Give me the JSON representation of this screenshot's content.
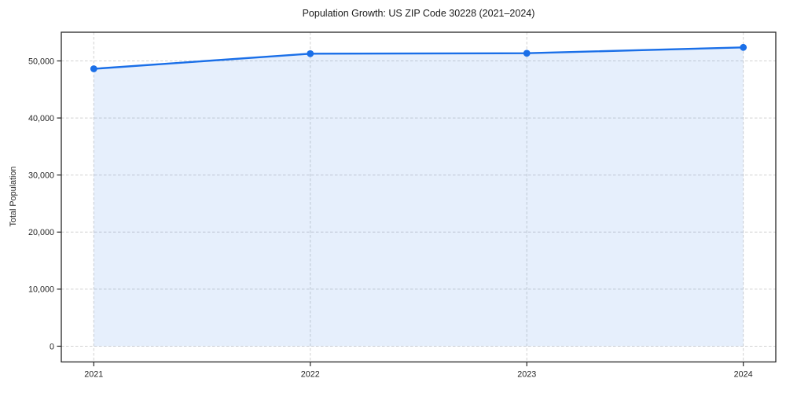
{
  "chart_data": {
    "type": "line",
    "title": "Population Growth: US ZIP Code 30228 (2021–2024)",
    "xlabel": "",
    "ylabel": "Total Population",
    "categories": [
      "2021",
      "2022",
      "2023",
      "2024"
    ],
    "series": [
      {
        "name": "Total Population",
        "values": [
          48620,
          51270,
          51350,
          52370
        ]
      }
    ],
    "yticks": [
      0,
      10000,
      20000,
      30000,
      40000,
      50000
    ],
    "ytick_labels": [
      "0",
      "10,000",
      "20,000",
      "30,000",
      "40,000",
      "50,000"
    ],
    "ylim": [
      -2760,
      55030
    ],
    "x_pad": 0.15,
    "grid": "dashed",
    "legend": "none",
    "area_fill": true,
    "colors": {
      "line": "#1a6fe8",
      "marker": "#1a6fe8",
      "fill": "rgba(26,111,232,0.11)",
      "grid": "#d2d2d2",
      "spine": "#262626",
      "tick": "#262626"
    }
  }
}
